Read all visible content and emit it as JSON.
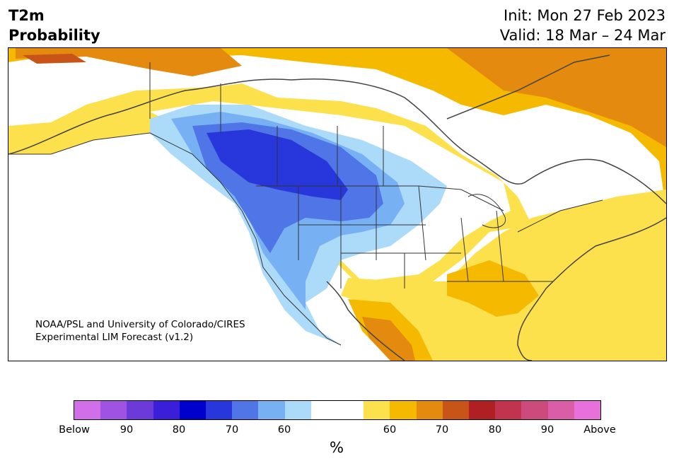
{
  "header": {
    "variable": "T2m",
    "product": "Probability",
    "init": "Init: Mon 27 Feb 2023",
    "valid": "Valid: 18 Mar – 24 Mar"
  },
  "credit": {
    "line1": "NOAA/PSL and University of Colorado/CIRES",
    "line2": "Experimental LIM Forecast (v1.2)"
  },
  "colorbar": {
    "unit": "%",
    "colors": [
      "#d16fe8",
      "#a052e2",
      "#6b3ad8",
      "#3a1ed8",
      "#0000cd",
      "#2737dc",
      "#4f75e6",
      "#78b1f3",
      "#acdaf9",
      "#ffffff",
      "#ffffff",
      "#fde14c",
      "#f5b900",
      "#e38a0f",
      "#c95418",
      "#b01f22",
      "#c2334d",
      "#cd4b7c",
      "#da5da8",
      "#e870dc"
    ],
    "tick_labels": [
      "Below",
      "90",
      "80",
      "70",
      "60",
      "60",
      "70",
      "80",
      "90",
      "Above"
    ]
  },
  "map": {
    "region": "North America",
    "colors": {
      "below_60": "#acdaf9",
      "below_70": "#78b1f3",
      "below_80": "#4f75e6",
      "below_90": "#2737dc",
      "above_60": "#fde14c",
      "above_70": "#f5b900",
      "above_80": "#e38a0f",
      "above_90": "#c95418",
      "land_lines": "#333333"
    }
  }
}
